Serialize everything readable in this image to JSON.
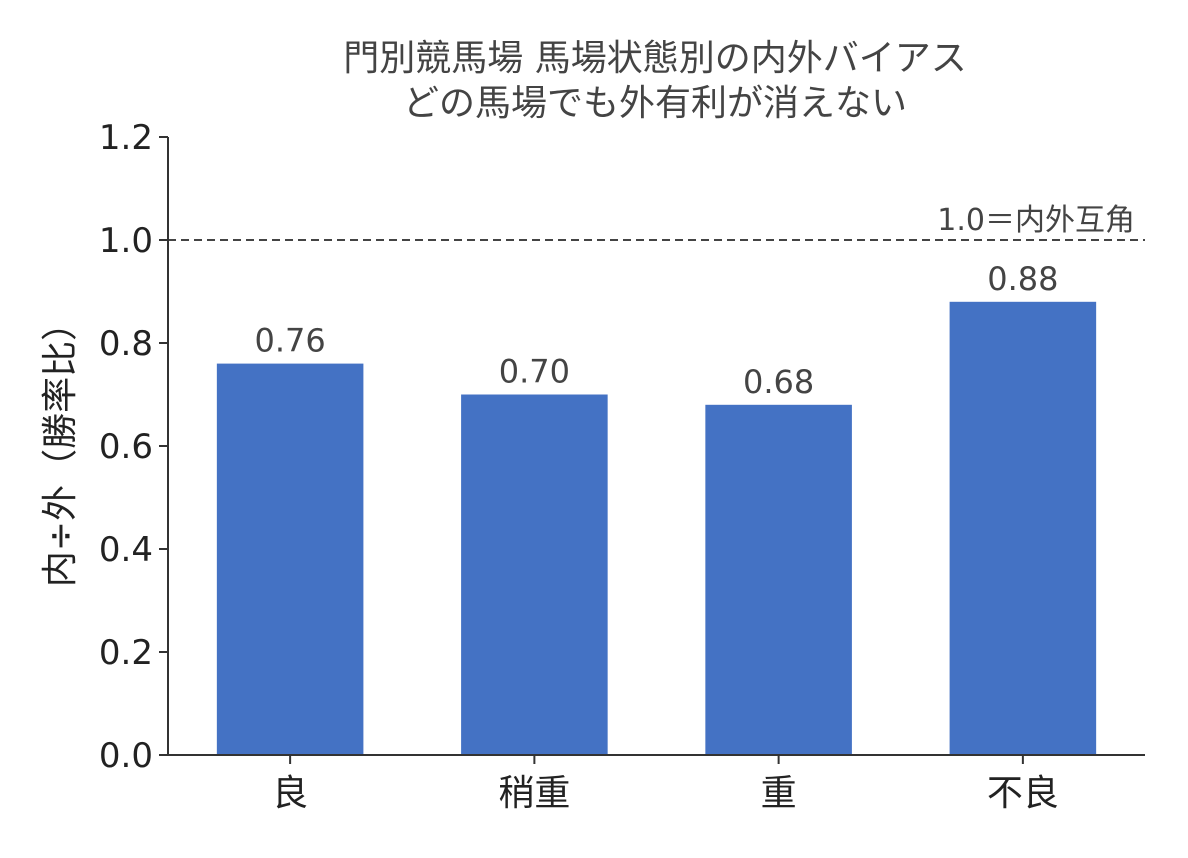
{
  "chart_data": {
    "type": "bar",
    "title": [
      "門別競馬場 馬場状態別の内外バイアス",
      "どの馬場でも外有利が消えない"
    ],
    "ylabel": "内÷外（勝率比）",
    "xlabel": "",
    "categories": [
      "良",
      "稍重",
      "重",
      "不良"
    ],
    "values": [
      0.76,
      0.7,
      0.68,
      0.88
    ],
    "value_labels": [
      "0.76",
      "0.70",
      "0.68",
      "0.88"
    ],
    "ylim": [
      0.0,
      1.2
    ],
    "yticks": [
      0.0,
      0.2,
      0.4,
      0.6,
      0.8,
      1.0,
      1.2
    ],
    "ytick_labels": [
      "0.0",
      "0.2",
      "0.4",
      "0.6",
      "0.8",
      "1.0",
      "1.2"
    ],
    "reference_line": {
      "y": 1.0,
      "label": "1.0＝内外互角",
      "style": "dashed"
    },
    "grid": false,
    "legend": "none",
    "colors": {
      "bar": "#4472C4",
      "axis": "#333333",
      "reference": "#444444"
    }
  }
}
